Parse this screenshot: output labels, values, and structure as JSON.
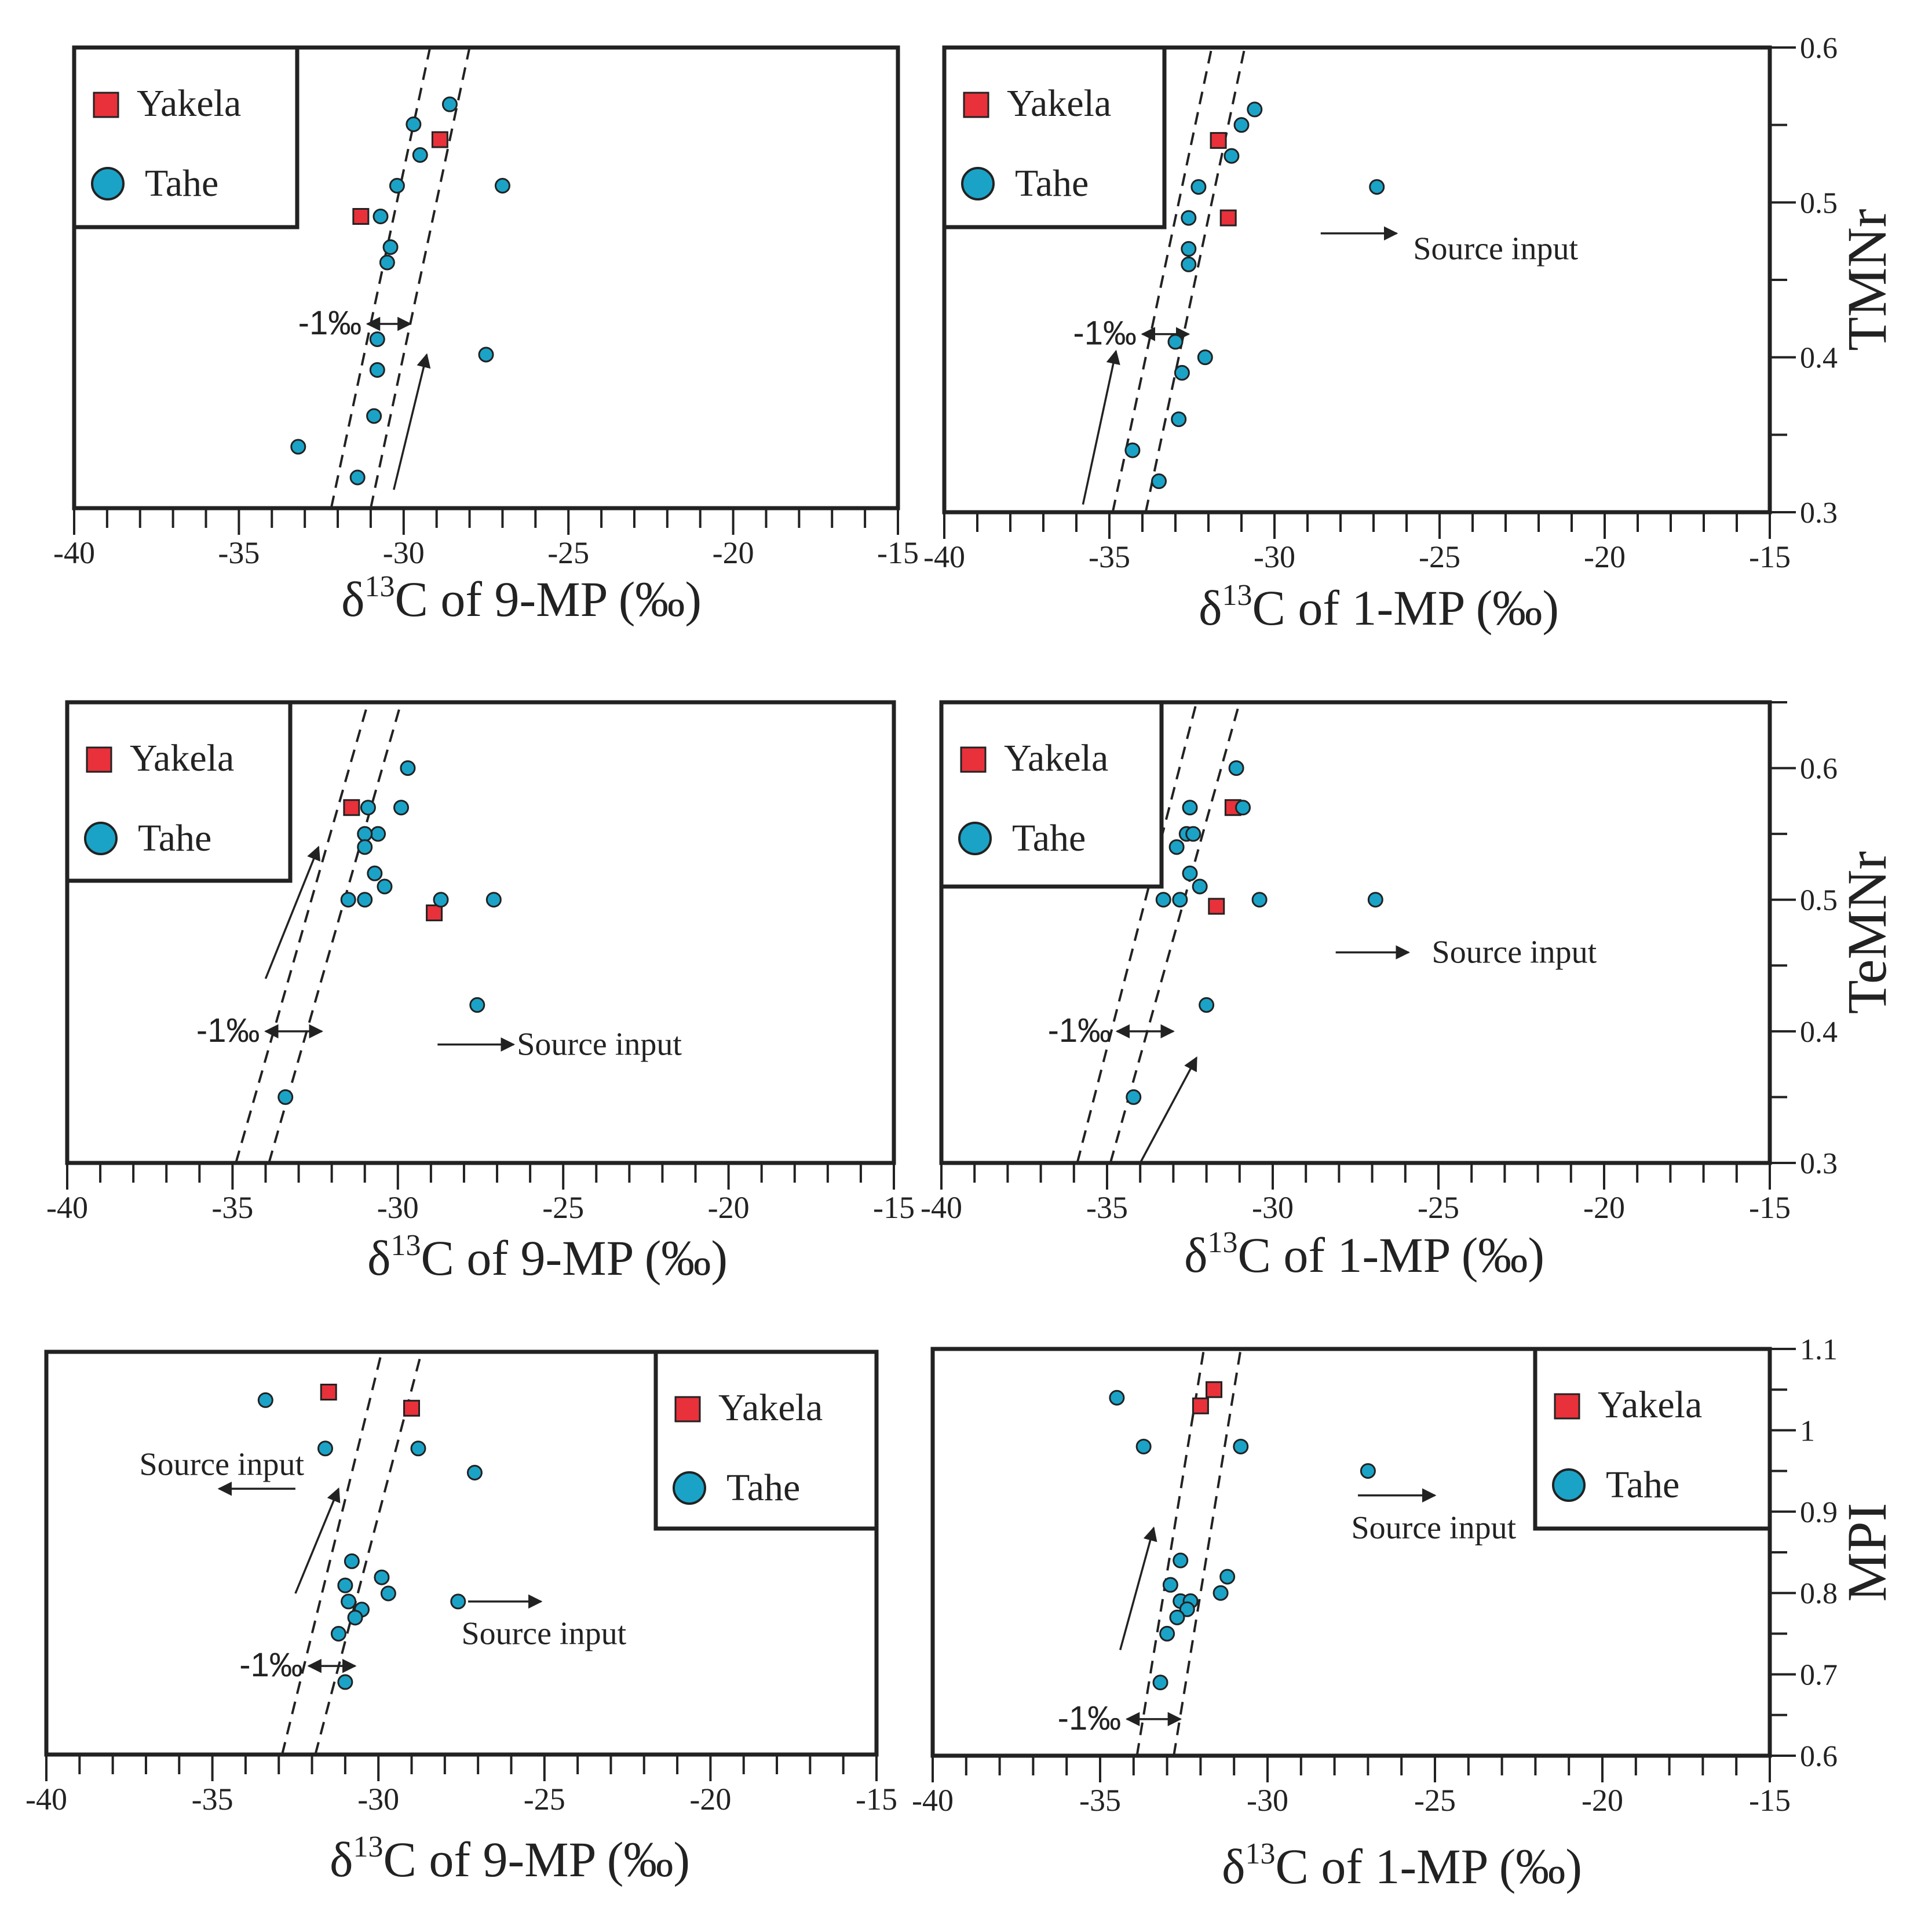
{
  "figure": {
    "colors": {
      "yakela": "#e8313a",
      "tahe": "#1aa3c7",
      "ink": "#222222"
    },
    "delta_prefix": "δ",
    "superscript": "13",
    "permil_label": "-1‰"
  },
  "chart_data": [
    {
      "type": "scatter",
      "id": "p1",
      "xlabel_text": "C of 9-MP (‰)",
      "xlim": [
        -40,
        -15
      ],
      "ylim": [
        0.3,
        0.6
      ],
      "xticks": [
        "-40",
        "-35",
        "-30",
        "-25",
        "-20",
        "-15"
      ],
      "yticks": [],
      "ylabel": "",
      "legend": {
        "position": "top-left",
        "entries": [
          "Yakela",
          "Tahe"
        ]
      },
      "series": [
        {
          "name": "Yakela",
          "marker": "square",
          "points": [
            [
              -28.9,
              0.54
            ],
            [
              -31.3,
              0.49
            ]
          ]
        },
        {
          "name": "Tahe",
          "marker": "circle",
          "points": [
            [
              -28.6,
              0.563
            ],
            [
              -29.7,
              0.55
            ],
            [
              -29.5,
              0.53
            ],
            [
              -30.2,
              0.51
            ],
            [
              -27.0,
              0.51
            ],
            [
              -30.7,
              0.49
            ],
            [
              -30.4,
              0.47
            ],
            [
              -30.5,
              0.46
            ],
            [
              -30.8,
              0.41
            ],
            [
              -30.8,
              0.39
            ],
            [
              -30.9,
              0.36
            ],
            [
              -27.5,
              0.4
            ],
            [
              -33.2,
              0.34
            ],
            [
              -31.4,
              0.32
            ]
          ]
        }
      ],
      "guides": [
        [
          [
            -32.2,
            0.3
          ],
          [
            -29.2,
            0.6
          ]
        ],
        [
          [
            -31.0,
            0.3
          ],
          [
            -28.0,
            0.6
          ]
        ]
      ],
      "permil": {
        "x1": -31.1,
        "x2": -29.8,
        "y": 0.42
      },
      "trend": [
        [
          -30.3,
          0.312
        ],
        [
          -29.3,
          0.4
        ]
      ],
      "source_input": null
    },
    {
      "type": "scatter",
      "id": "p2",
      "xlabel_text": "C of 1-MP (‰)",
      "xlim": [
        -40,
        -15
      ],
      "ylim": [
        0.3,
        0.6
      ],
      "xticks": [
        "-40",
        "-35",
        "-30",
        "-25",
        "-20",
        "-15"
      ],
      "yticks": [
        "0.3",
        "0.4",
        "0.5",
        "0.6"
      ],
      "ylabel": "TMNr",
      "legend": {
        "position": "top-left",
        "entries": [
          "Yakela",
          "Tahe"
        ]
      },
      "series": [
        {
          "name": "Yakela",
          "marker": "square",
          "points": [
            [
              -31.7,
              0.54
            ],
            [
              -31.4,
              0.49
            ]
          ]
        },
        {
          "name": "Tahe",
          "marker": "circle",
          "points": [
            [
              -30.6,
              0.56
            ],
            [
              -31.0,
              0.55
            ],
            [
              -31.3,
              0.53
            ],
            [
              -32.3,
              0.51
            ],
            [
              -26.9,
              0.51
            ],
            [
              -32.6,
              0.49
            ],
            [
              -32.6,
              0.47
            ],
            [
              -32.6,
              0.46
            ],
            [
              -33.0,
              0.41
            ],
            [
              -32.1,
              0.4
            ],
            [
              -32.8,
              0.39
            ],
            [
              -32.9,
              0.36
            ],
            [
              -34.3,
              0.34
            ],
            [
              -33.5,
              0.32
            ]
          ]
        }
      ],
      "guides": [
        [
          [
            -34.9,
            0.3
          ],
          [
            -31.9,
            0.6
          ]
        ],
        [
          [
            -33.9,
            0.3
          ],
          [
            -30.9,
            0.6
          ]
        ]
      ],
      "permil": {
        "x1": -34.0,
        "x2": -32.6,
        "y": 0.415
      },
      "trend": [
        [
          -35.8,
          0.305
        ],
        [
          -34.8,
          0.404
        ]
      ],
      "source_input": {
        "text": "Source input",
        "direction": "right",
        "x1": -28.6,
        "x2": -26.3,
        "y": 0.48,
        "tx": -25.8,
        "ty": 0.47
      }
    },
    {
      "type": "scatter",
      "id": "p3",
      "xlabel_text": "C of 9-MP (‰)",
      "xlim": [
        -40,
        -15
      ],
      "ylim": [
        0.3,
        0.65
      ],
      "xticks": [
        "-40",
        "-35",
        "-30",
        "-25",
        "-20",
        "-15"
      ],
      "yticks": [],
      "ylabel": "",
      "legend": {
        "position": "top-left",
        "entries": [
          "Yakela",
          "Tahe"
        ]
      },
      "series": [
        {
          "name": "Yakela",
          "marker": "square",
          "points": [
            [
              -31.4,
              0.57
            ],
            [
              -28.9,
              0.49
            ]
          ]
        },
        {
          "name": "Tahe",
          "marker": "circle",
          "points": [
            [
              -29.7,
              0.6
            ],
            [
              -30.9,
              0.57
            ],
            [
              -29.9,
              0.57
            ],
            [
              -30.6,
              0.55
            ],
            [
              -31.0,
              0.55
            ],
            [
              -31.0,
              0.54
            ],
            [
              -30.7,
              0.52
            ],
            [
              -30.4,
              0.51
            ],
            [
              -31.5,
              0.5
            ],
            [
              -31.0,
              0.5
            ],
            [
              -28.7,
              0.5
            ],
            [
              -27.1,
              0.5
            ],
            [
              -27.6,
              0.42
            ],
            [
              -33.4,
              0.35
            ]
          ]
        }
      ],
      "guides": [
        [
          [
            -34.9,
            0.3
          ],
          [
            -30.9,
            0.65
          ]
        ],
        [
          [
            -33.9,
            0.3
          ],
          [
            -29.9,
            0.65
          ]
        ]
      ],
      "permil": {
        "x1": -34.0,
        "x2": -32.3,
        "y": 0.4
      },
      "trend": [
        [
          -34.0,
          0.44
        ],
        [
          -32.4,
          0.54
        ]
      ],
      "source_input": {
        "text": "Source input",
        "direction": "right",
        "x1": -28.8,
        "x2": -26.5,
        "y": 0.39,
        "tx": -26.4,
        "ty": 0.39
      }
    },
    {
      "type": "scatter",
      "id": "p4",
      "xlabel_text": "C of 1-MP (‰)",
      "xlim": [
        -40,
        -15
      ],
      "ylim": [
        0.3,
        0.65
      ],
      "xticks": [
        "-40",
        "-35",
        "-30",
        "-25",
        "-20",
        "-15"
      ],
      "yticks": [
        "0.3",
        "0.4",
        "0.5",
        "0.6"
      ],
      "ylabel": "TeMNr",
      "legend": {
        "position": "top-left",
        "entries": [
          "Yakela",
          "Tahe"
        ]
      },
      "series": [
        {
          "name": "Yakela",
          "marker": "square",
          "points": [
            [
              -31.2,
              0.57
            ],
            [
              -31.7,
              0.495
            ]
          ]
        },
        {
          "name": "Tahe",
          "marker": "circle",
          "points": [
            [
              -31.1,
              0.6
            ],
            [
              -32.5,
              0.57
            ],
            [
              -30.9,
              0.57
            ],
            [
              -32.6,
              0.55
            ],
            [
              -32.4,
              0.55
            ],
            [
              -32.9,
              0.54
            ],
            [
              -32.5,
              0.52
            ],
            [
              -32.2,
              0.51
            ],
            [
              -33.3,
              0.5
            ],
            [
              -32.8,
              0.5
            ],
            [
              -30.4,
              0.5
            ],
            [
              -26.9,
              0.5
            ],
            [
              -32.0,
              0.42
            ],
            [
              -34.2,
              0.35
            ]
          ]
        }
      ],
      "guides": [
        [
          [
            -35.9,
            0.3
          ],
          [
            -32.3,
            0.65
          ]
        ],
        [
          [
            -34.9,
            0.3
          ],
          [
            -31.0,
            0.65
          ]
        ]
      ],
      "permil": {
        "x1": -34.7,
        "x2": -33.0,
        "y": 0.4
      },
      "trend": [
        [
          -34.0,
          0.3
        ],
        [
          -32.3,
          0.38
        ]
      ],
      "source_input": {
        "text": "Source input",
        "direction": "right",
        "x1": -28.1,
        "x2": -25.9,
        "y": 0.46,
        "tx": -25.2,
        "ty": 0.46
      }
    },
    {
      "type": "scatter",
      "id": "p5",
      "xlabel_text": "C of 9-MP (‰)",
      "xlim": [
        -40,
        -15
      ],
      "ylim": [
        0.6,
        1.1
      ],
      "xticks": [
        "-40",
        "-35",
        "-30",
        "-25",
        "-20",
        "-15"
      ],
      "yticks": [],
      "ylabel": "",
      "legend": {
        "position": "top-right",
        "entries": [
          "Yakela",
          "Tahe"
        ]
      },
      "series": [
        {
          "name": "Yakela",
          "marker": "square",
          "points": [
            [
              -31.5,
              1.05
            ],
            [
              -29.0,
              1.03
            ]
          ]
        },
        {
          "name": "Tahe",
          "marker": "circle",
          "points": [
            [
              -33.4,
              1.04
            ],
            [
              -31.6,
              0.98
            ],
            [
              -28.8,
              0.98
            ],
            [
              -27.1,
              0.95
            ],
            [
              -30.8,
              0.84
            ],
            [
              -31.0,
              0.81
            ],
            [
              -29.9,
              0.82
            ],
            [
              -30.9,
              0.79
            ],
            [
              -30.5,
              0.78
            ],
            [
              -29.7,
              0.8
            ],
            [
              -30.7,
              0.77
            ],
            [
              -31.2,
              0.75
            ],
            [
              -27.6,
              0.79
            ],
            [
              -31.0,
              0.69
            ]
          ]
        }
      ],
      "guides": [
        [
          [
            -32.9,
            0.6
          ],
          [
            -29.9,
            1.1
          ]
        ],
        [
          [
            -31.9,
            0.6
          ],
          [
            -28.7,
            1.1
          ]
        ]
      ],
      "permil": {
        "x1": -32.1,
        "x2": -30.7,
        "y": 0.71
      },
      "trend": [
        [
          -32.5,
          0.8
        ],
        [
          -31.2,
          0.93
        ]
      ],
      "source_input": [
        {
          "text": "Source input",
          "direction": "left",
          "x1": -32.5,
          "x2": -34.8,
          "y": 0.93,
          "tx": -37.2,
          "ty": 0.96
        },
        {
          "text": "Source input",
          "direction": "right",
          "x1": -27.3,
          "x2": -25.1,
          "y": 0.79,
          "tx": -27.5,
          "ty": 0.75
        }
      ]
    },
    {
      "type": "scatter",
      "id": "p6",
      "xlabel_text": "C of 1-MP (‰)",
      "xlim": [
        -40,
        -15
      ],
      "ylim": [
        0.6,
        1.1
      ],
      "xticks": [
        "-40",
        "-35",
        "-30",
        "-25",
        "-20",
        "-15"
      ],
      "yticks": [
        "0.6",
        "0.7",
        "0.8",
        "0.9",
        "1",
        "1.1"
      ],
      "ylabel": "MPI",
      "legend": {
        "position": "top-right",
        "entries": [
          "Yakela",
          "Tahe"
        ]
      },
      "series": [
        {
          "name": "Yakela",
          "marker": "square",
          "points": [
            [
              -31.6,
              1.05
            ],
            [
              -32.0,
              1.03
            ]
          ]
        },
        {
          "name": "Tahe",
          "marker": "circle",
          "points": [
            [
              -34.5,
              1.04
            ],
            [
              -33.7,
              0.98
            ],
            [
              -30.8,
              0.98
            ],
            [
              -27.0,
              0.95
            ],
            [
              -32.6,
              0.84
            ],
            [
              -32.9,
              0.81
            ],
            [
              -31.2,
              0.82
            ],
            [
              -31.4,
              0.8
            ],
            [
              -32.6,
              0.79
            ],
            [
              -32.3,
              0.79
            ],
            [
              -32.4,
              0.78
            ],
            [
              -32.7,
              0.77
            ],
            [
              -33.0,
              0.75
            ],
            [
              -33.2,
              0.69
            ]
          ]
        }
      ],
      "guides": [
        [
          [
            -33.9,
            0.6
          ],
          [
            -31.9,
            1.1
          ]
        ],
        [
          [
            -32.8,
            0.6
          ],
          [
            -30.8,
            1.1
          ]
        ]
      ],
      "permil": {
        "x1": -34.2,
        "x2": -32.6,
        "y": 0.645
      },
      "trend": [
        [
          -34.4,
          0.73
        ],
        [
          -33.4,
          0.88
        ]
      ],
      "source_input": {
        "text": "Source input",
        "direction": "right",
        "x1": -27.3,
        "x2": -25.0,
        "y": 0.92,
        "tx": -27.5,
        "ty": 0.88
      }
    }
  ]
}
